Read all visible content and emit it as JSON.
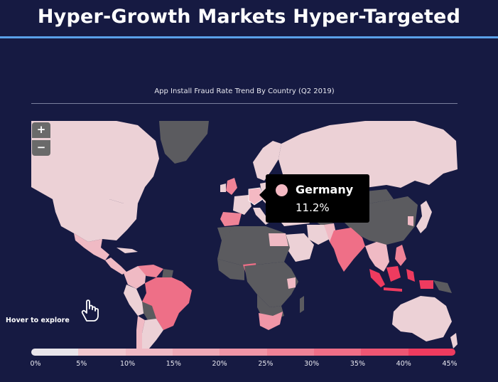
{
  "header": {
    "title": "Hyper-Growth Markets Hyper-Targeted"
  },
  "map": {
    "title": "App Install Fraud Rate Trend By Country (Q2 2019)",
    "zoom_in_label": "+",
    "zoom_out_label": "−",
    "hover_hint": "Hover to explore",
    "no_data_color": "#5b5b5f",
    "tooltip": {
      "country": "Germany",
      "value": "11.2%",
      "color": "#f4b9c3"
    },
    "legend": {
      "ticks": [
        "0%",
        "5%",
        "10%",
        "15%",
        "20%",
        "25%",
        "30%",
        "35%",
        "40%",
        "45%"
      ],
      "colors": [
        "#e8e5ea",
        "#f1c9cf",
        "#f0bac4",
        "#efaab7",
        "#f096a7",
        "#ef8397",
        "#ef6f87",
        "#ee5673",
        "#ee3b5f"
      ]
    },
    "regions": [
      {
        "name": "Canada",
        "rate": "light"
      },
      {
        "name": "United States",
        "rate": "light"
      },
      {
        "name": "Mexico",
        "rate": "light"
      },
      {
        "name": "Greenland",
        "rate": "none"
      },
      {
        "name": "Brazil",
        "rate": "mid"
      },
      {
        "name": "Argentina",
        "rate": "light"
      },
      {
        "name": "Russia",
        "rate": "light"
      },
      {
        "name": "China",
        "rate": "none"
      },
      {
        "name": "India",
        "rate": "high"
      },
      {
        "name": "Indonesia",
        "rate": "high"
      },
      {
        "name": "Australia",
        "rate": "light"
      },
      {
        "name": "Nigeria",
        "rate": "mid"
      },
      {
        "name": "South Africa",
        "rate": "mid"
      },
      {
        "name": "Saudi Arabia",
        "rate": "light"
      },
      {
        "name": "Germany",
        "rate": "light"
      }
    ]
  }
}
